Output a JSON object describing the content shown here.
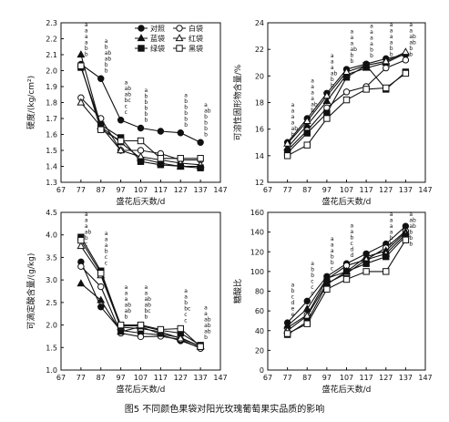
{
  "caption": "图5  不同颜色果袋对阳光玫瑰葡萄果实品质的影响",
  "chart_data": [
    {
      "type": "line",
      "id": "hardness",
      "title": "",
      "ylabel": "硬度/(kg/cm²)",
      "xlabel": "盛花后天数/d",
      "xlim": [
        67,
        147
      ],
      "xticks": [
        67,
        77,
        87,
        97,
        107,
        117,
        127,
        137,
        147
      ],
      "ylim": [
        1.3,
        2.3
      ],
      "yticks": [
        1.3,
        1.4,
        1.5,
        1.6,
        1.7,
        1.8,
        1.9,
        2.0,
        2.1,
        2.2,
        2.3
      ],
      "ytick_labels": [
        "1.3",
        "1.4",
        "1.5",
        "1.6",
        "1.7",
        "1.8",
        "1.9",
        "2.0",
        "2.1",
        "2.2",
        "2.3"
      ],
      "legend": {
        "placement": "top-right",
        "entries": [
          "对照",
          "白袋",
          "蓝袋",
          "红袋",
          "绿袋",
          "黑袋"
        ]
      },
      "x": [
        77,
        87,
        97,
        107,
        117,
        127,
        137
      ],
      "series": [
        {
          "name": "对照",
          "marker": "filled-circle",
          "values": [
            2.04,
            1.95,
            1.69,
            1.64,
            1.62,
            1.61,
            1.55
          ]
        },
        {
          "name": "白袋",
          "marker": "open-circle",
          "values": [
            1.83,
            1.7,
            1.5,
            1.5,
            1.48,
            1.44,
            1.44
          ]
        },
        {
          "name": "蓝袋",
          "marker": "filled-triangle",
          "values": [
            2.1,
            1.65,
            1.55,
            1.45,
            1.42,
            1.4,
            1.4
          ]
        },
        {
          "name": "红袋",
          "marker": "open-triangle",
          "values": [
            1.8,
            1.65,
            1.5,
            1.46,
            1.44,
            1.42,
            1.41
          ]
        },
        {
          "name": "绿袋",
          "marker": "filled-square",
          "values": [
            2.02,
            1.66,
            1.58,
            1.43,
            1.41,
            1.4,
            1.39
          ]
        },
        {
          "name": "黑袋",
          "marker": "open-square",
          "values": [
            2.03,
            1.63,
            1.56,
            1.56,
            1.45,
            1.45,
            1.45
          ]
        }
      ],
      "annotations": [
        {
          "x": 77,
          "labels": [
            "a",
            "a",
            "a",
            "a",
            "b",
            "b"
          ]
        },
        {
          "x": 87,
          "labels": [
            "a",
            "b",
            "ab",
            "ab",
            "b",
            "b"
          ]
        },
        {
          "x": 97,
          "labels": [
            "a",
            "ab",
            "ab",
            "bc",
            "c",
            "c"
          ]
        },
        {
          "x": 107,
          "labels": [
            "a",
            "b",
            "b",
            "b",
            "b",
            "b"
          ]
        },
        {
          "x": 127,
          "labels": [
            "a",
            "b",
            "b",
            "b",
            "b",
            "b"
          ]
        },
        {
          "x": 137,
          "labels": [
            "a",
            "ab",
            "b",
            "b",
            "b",
            "b"
          ]
        }
      ]
    },
    {
      "type": "line",
      "id": "soluble-solids",
      "title": "",
      "ylabel": "可溶性固形物含量/%",
      "xlabel": "盛花后天数/d",
      "xlim": [
        67,
        147
      ],
      "xticks": [
        67,
        77,
        87,
        97,
        107,
        117,
        127,
        137,
        147
      ],
      "ylim": [
        12,
        24
      ],
      "yticks": [
        12,
        14,
        16,
        18,
        20,
        22,
        24
      ],
      "ytick_labels": [
        "12",
        "14",
        "16",
        "18",
        "20",
        "22",
        "24"
      ],
      "x": [
        77,
        87,
        97,
        107,
        117,
        127,
        137
      ],
      "series": [
        {
          "name": "对照",
          "marker": "filled-circle",
          "values": [
            15.0,
            16.8,
            18.7,
            20.5,
            20.9,
            21.3,
            21.6
          ]
        },
        {
          "name": "白袋",
          "marker": "open-circle",
          "values": [
            14.4,
            15.9,
            17.6,
            18.8,
            19.2,
            20.6,
            21.2
          ]
        },
        {
          "name": "蓝袋",
          "marker": "filled-triangle",
          "values": [
            14.6,
            16.3,
            18.1,
            20.1,
            20.6,
            21.0,
            21.7
          ]
        },
        {
          "name": "红袋",
          "marker": "open-triangle",
          "values": [
            14.9,
            16.6,
            18.5,
            20.3,
            20.8,
            21.1,
            21.8
          ]
        },
        {
          "name": "绿袋",
          "marker": "filled-square",
          "values": [
            14.2,
            15.7,
            17.2,
            19.9,
            20.8,
            19.0,
            20.3
          ]
        },
        {
          "name": "黑袋",
          "marker": "open-square",
          "values": [
            14.0,
            14.8,
            16.8,
            18.2,
            19.0,
            19.1,
            20.2
          ]
        }
      ],
      "annotations": [
        {
          "x": 77,
          "labels": [
            "a",
            "a",
            "a",
            "a",
            "ab",
            "b"
          ]
        },
        {
          "x": 87,
          "labels": [
            "a",
            "a",
            "a",
            "a",
            "ab",
            "b"
          ]
        },
        {
          "x": 97,
          "labels": [
            "a",
            "a",
            "a",
            "ab",
            "b",
            "b"
          ]
        },
        {
          "x": 107,
          "labels": [
            "a",
            "a",
            "a",
            "ab",
            "b",
            "b"
          ]
        },
        {
          "x": 117,
          "labels": [
            "a",
            "a",
            "a",
            "a",
            "b",
            "b"
          ]
        },
        {
          "x": 127,
          "labels": [
            "a",
            "a",
            "a",
            "a",
            "b",
            "b"
          ]
        },
        {
          "x": 137,
          "labels": [
            "a",
            "a",
            "ab",
            "ab",
            "b",
            "b"
          ]
        }
      ]
    },
    {
      "type": "line",
      "id": "titratable-acid",
      "title": "",
      "ylabel": "可滴定酸含量/(g/kg)",
      "xlabel": "盛花后天数/d",
      "xlim": [
        67,
        147
      ],
      "xticks": [
        67,
        77,
        87,
        97,
        107,
        117,
        127,
        137,
        147
      ],
      "ylim": [
        1.0,
        4.5
      ],
      "yticks": [
        1.0,
        1.5,
        2.0,
        2.5,
        3.0,
        3.5,
        4.0,
        4.5
      ],
      "ytick_labels": [
        "1.0",
        "1.5",
        "2.0",
        "2.5",
        "3.0",
        "3.5",
        "4.0",
        "4.5"
      ],
      "x": [
        77,
        87,
        97,
        107,
        117,
        127,
        137
      ],
      "series": [
        {
          "name": "对照",
          "marker": "filled-circle",
          "values": [
            3.4,
            2.4,
            1.88,
            1.82,
            1.78,
            1.65,
            1.5
          ]
        },
        {
          "name": "白袋",
          "marker": "open-circle",
          "values": [
            3.3,
            2.85,
            1.82,
            1.74,
            1.75,
            1.68,
            1.48
          ]
        },
        {
          "name": "蓝袋",
          "marker": "filled-triangle",
          "values": [
            2.92,
            2.55,
            1.85,
            1.96,
            1.8,
            1.72,
            1.52
          ]
        },
        {
          "name": "红袋",
          "marker": "open-triangle",
          "values": [
            3.75,
            3.1,
            1.95,
            1.92,
            1.85,
            1.7,
            1.53
          ]
        },
        {
          "name": "绿袋",
          "marker": "filled-square",
          "values": [
            3.95,
            3.2,
            1.98,
            1.98,
            1.88,
            1.82,
            1.55
          ]
        },
        {
          "name": "黑袋",
          "marker": "open-square",
          "values": [
            3.88,
            3.15,
            2.0,
            2.0,
            1.9,
            1.92,
            1.52
          ]
        }
      ],
      "annotations": [
        {
          "x": 77,
          "labels": [
            "a",
            "a",
            "a",
            "ab",
            "b",
            "c"
          ]
        },
        {
          "x": 87,
          "labels": [
            "a",
            "a",
            "a",
            "b",
            "c",
            "c"
          ]
        },
        {
          "x": 97,
          "labels": [
            "a",
            "a",
            "a",
            "ab",
            "ab",
            "b"
          ]
        },
        {
          "x": 107,
          "labels": [
            "a",
            "a",
            "ab",
            "ab",
            "bc",
            "b"
          ]
        },
        {
          "x": 127,
          "labels": [
            "a",
            "a",
            "b",
            "bc",
            "c",
            "c"
          ]
        },
        {
          "x": 137,
          "labels": [
            "a",
            "a",
            "ab",
            "ab",
            "ab",
            "b"
          ]
        }
      ]
    },
    {
      "type": "line",
      "id": "sugar-acid-ratio",
      "title": "",
      "ylabel": "糖酸比",
      "xlabel": "盛花后天数/d",
      "xlim": [
        67,
        147
      ],
      "xticks": [
        67,
        77,
        87,
        97,
        107,
        117,
        127,
        137,
        147
      ],
      "ylim": [
        0,
        160
      ],
      "yticks": [
        0,
        20,
        40,
        60,
        80,
        100,
        120,
        140,
        160
      ],
      "ytick_labels": [
        "0",
        "20",
        "40",
        "60",
        "80",
        "100",
        "120",
        "140",
        "160"
      ],
      "x": [
        77,
        87,
        97,
        107,
        117,
        127,
        137
      ],
      "series": [
        {
          "name": "对照",
          "marker": "filled-circle",
          "values": [
            48,
            70,
            95,
            108,
            118,
            128,
            146
          ]
        },
        {
          "name": "白袋",
          "marker": "open-circle",
          "values": [
            43,
            56,
            92,
            106,
            112,
            124,
            141
          ]
        },
        {
          "name": "蓝袋",
          "marker": "filled-triangle",
          "values": [
            45,
            62,
            93,
            100,
            115,
            121,
            140
          ]
        },
        {
          "name": "红袋",
          "marker": "open-triangle",
          "values": [
            40,
            55,
            88,
            98,
            112,
            118,
            138
          ]
        },
        {
          "name": "绿袋",
          "marker": "filled-square",
          "values": [
            36,
            49,
            87,
            100,
            108,
            115,
            136
          ]
        },
        {
          "name": "黑袋",
          "marker": "open-square",
          "values": [
            37,
            47,
            82,
            92,
            100,
            100,
            132
          ]
        }
      ],
      "annotations": [
        {
          "x": 77,
          "labels": [
            "a",
            "b",
            "c",
            "d",
            "e",
            "e"
          ]
        },
        {
          "x": 87,
          "labels": [
            "a",
            "b",
            "b",
            "c",
            "c",
            "c"
          ]
        },
        {
          "x": 97,
          "labels": [
            "a",
            "a",
            "a",
            "b",
            "b",
            "c"
          ]
        },
        {
          "x": 107,
          "labels": [
            "a",
            "a",
            "b",
            "c",
            "d",
            "d"
          ]
        },
        {
          "x": 127,
          "labels": [
            "a",
            "a",
            "a",
            "a",
            "b",
            "b"
          ]
        },
        {
          "x": 137,
          "labels": [
            "a",
            "ab",
            "ab",
            "b",
            "b",
            "b"
          ]
        }
      ]
    }
  ]
}
